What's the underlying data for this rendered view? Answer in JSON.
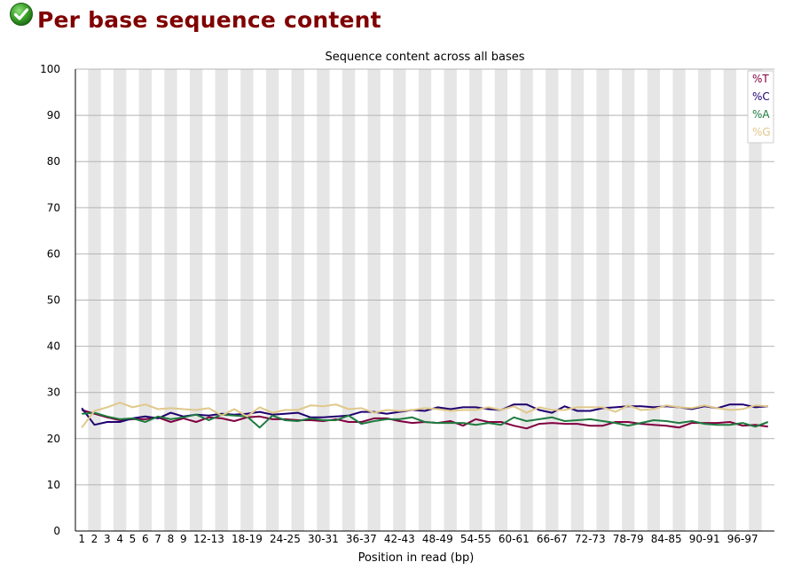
{
  "page": {
    "title": "Per base sequence content",
    "status_icon": "check-circle-icon",
    "status": "pass"
  },
  "chart_data": {
    "type": "line",
    "title": "Sequence content across all bases",
    "xlabel": "Position in read (bp)",
    "ylabel": "",
    "ylim": [
      0,
      100
    ],
    "yticks": [
      0,
      10,
      20,
      30,
      40,
      50,
      60,
      70,
      80,
      90,
      100
    ],
    "grid": true,
    "legend_position": "top-right",
    "categories": [
      "1",
      "2",
      "3",
      "4",
      "5",
      "6",
      "7",
      "8",
      "9",
      "10-11",
      "12-13",
      "14-15",
      "16-17",
      "18-19",
      "20-21",
      "22-23",
      "24-25",
      "26-27",
      "28-29",
      "30-31",
      "32-33",
      "34-35",
      "36-37",
      "38-39",
      "40-41",
      "42-43",
      "44-45",
      "46-47",
      "48-49",
      "50-51",
      "52-53",
      "54-55",
      "56-57",
      "58-59",
      "60-61",
      "62-63",
      "64-65",
      "66-67",
      "68-69",
      "70-71",
      "72-73",
      "74-75",
      "76-77",
      "78-79",
      "80-81",
      "82-83",
      "84-85",
      "86-87",
      "88-89",
      "90-91",
      "92-93",
      "94-95",
      "96-97",
      "98-99",
      "100-101"
    ],
    "tick_labels": [
      "1",
      "2",
      "3",
      "4",
      "5",
      "6",
      "7",
      "8",
      "9",
      "12-13",
      "18-19",
      "24-25",
      "30-31",
      "36-37",
      "42-43",
      "48-49",
      "54-55",
      "60-61",
      "66-67",
      "72-73",
      "78-79",
      "84-85",
      "90-91",
      "96-97"
    ],
    "series": [
      {
        "name": "%T",
        "color": "#800040",
        "values": [
          26.2,
          25.4,
          24.6,
          24.0,
          24.2,
          24.2,
          24.6,
          23.6,
          24.4,
          23.6,
          24.6,
          24.4,
          23.8,
          24.6,
          24.8,
          24.2,
          24.2,
          24.0,
          24.0,
          23.8,
          24.2,
          23.6,
          23.6,
          24.4,
          24.4,
          23.8,
          23.4,
          23.6,
          23.4,
          23.8,
          22.8,
          24.2,
          23.6,
          23.6,
          22.8,
          22.2,
          23.2,
          23.4,
          23.2,
          23.2,
          22.8,
          22.8,
          23.6,
          23.6,
          23.2,
          23.0,
          22.8,
          22.4,
          23.4,
          23.4,
          23.4,
          23.6,
          22.8,
          23.0,
          22.6
        ]
      },
      {
        "name": "%C",
        "color": "#1f006e",
        "values": [
          26.6,
          23.0,
          23.6,
          23.6,
          24.4,
          24.8,
          24.4,
          25.6,
          24.8,
          25.2,
          25.0,
          25.4,
          25.2,
          25.4,
          25.8,
          25.2,
          25.4,
          25.6,
          24.6,
          24.6,
          24.8,
          25.0,
          25.8,
          25.8,
          25.4,
          25.8,
          26.2,
          26.0,
          26.8,
          26.4,
          26.8,
          26.8,
          26.4,
          26.2,
          27.4,
          27.4,
          26.2,
          25.6,
          27.0,
          26.0,
          26.0,
          26.6,
          26.8,
          27.0,
          27.0,
          26.8,
          27.0,
          26.8,
          26.4,
          27.0,
          26.6,
          27.4,
          27.4,
          26.8,
          27.0
        ]
      },
      {
        "name": "%A",
        "color": "#1e7b3f",
        "values": [
          25.4,
          25.6,
          24.8,
          24.2,
          24.4,
          23.6,
          24.8,
          24.2,
          24.6,
          25.2,
          24.0,
          25.2,
          25.0,
          24.8,
          22.4,
          25.0,
          24.0,
          23.8,
          24.4,
          24.0,
          24.0,
          25.0,
          23.2,
          23.8,
          24.2,
          24.2,
          24.6,
          23.6,
          23.4,
          23.4,
          23.4,
          23.0,
          23.4,
          23.0,
          24.6,
          23.8,
          24.2,
          24.6,
          23.8,
          24.0,
          24.2,
          23.8,
          23.4,
          22.8,
          23.4,
          24.0,
          23.8,
          23.4,
          23.8,
          23.2,
          23.0,
          23.0,
          23.4,
          22.6,
          23.6
        ]
      },
      {
        "name": "%G",
        "color": "#e0c88a",
        "values": [
          22.4,
          26.0,
          26.8,
          27.8,
          26.8,
          27.4,
          26.4,
          26.6,
          26.4,
          26.2,
          26.6,
          25.0,
          26.4,
          24.8,
          26.8,
          25.6,
          26.2,
          26.2,
          27.2,
          27.0,
          27.4,
          26.4,
          26.6,
          25.6,
          26.2,
          26.0,
          26.2,
          26.6,
          26.4,
          26.0,
          26.2,
          26.2,
          26.8,
          26.2,
          27.0,
          25.6,
          26.8,
          26.2,
          26.2,
          26.8,
          26.8,
          26.8,
          25.8,
          27.2,
          26.2,
          26.4,
          27.2,
          26.8,
          26.6,
          27.2,
          26.6,
          26.2,
          26.4,
          27.2,
          27.0
        ]
      }
    ]
  }
}
